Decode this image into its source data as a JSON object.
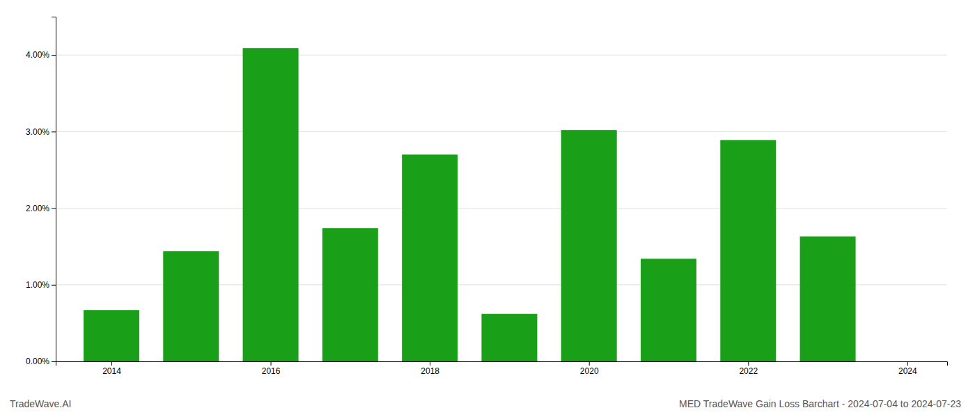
{
  "chart_data": {
    "type": "bar",
    "title": "MED TradeWave Gain Loss Barchart - 2024-07-04 to 2024-07-23",
    "annotations": [
      "TradeWave.AI"
    ],
    "x": [
      2014,
      2015,
      2016,
      2017,
      2018,
      2019,
      2020,
      2021,
      2022,
      2023
    ],
    "values": [
      0.0067,
      0.0144,
      0.0409,
      0.0174,
      0.027,
      0.0062,
      0.0302,
      0.0134,
      0.0289,
      0.0163
    ],
    "color": "#1aa018",
    "xlim": [
      2013.3,
      2024.5
    ],
    "xticks": [
      2014,
      2016,
      2018,
      2020,
      2022,
      2024
    ],
    "ylim": [
      0,
      0.045
    ],
    "yticks": [
      {
        "value": 0.0,
        "label": "0.00%"
      },
      {
        "value": 0.01,
        "label": "1.00%"
      },
      {
        "value": 0.02,
        "label": "2.00%"
      },
      {
        "value": 0.03,
        "label": "3.00%"
      },
      {
        "value": 0.04,
        "label": "4.00%"
      }
    ],
    "grid": true
  }
}
